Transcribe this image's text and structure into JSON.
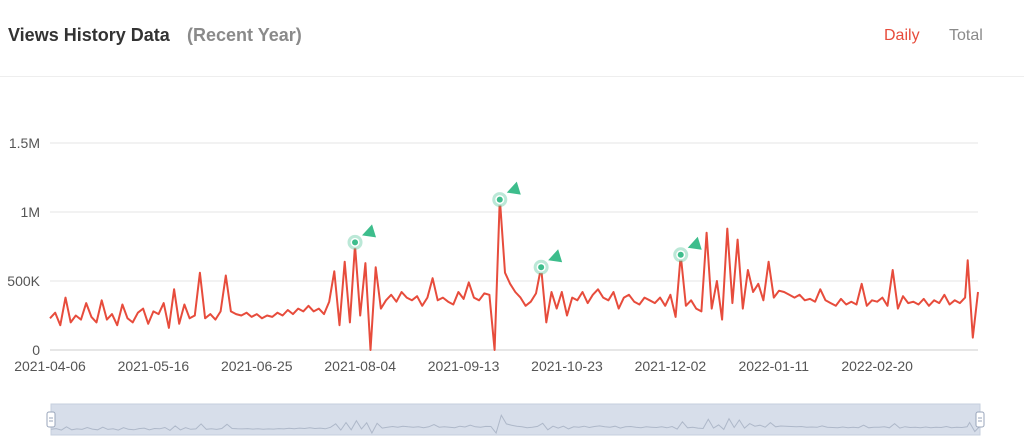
{
  "header": {
    "title": "Views History Data",
    "subtitle": "(Recent Year)",
    "tabs": [
      {
        "label": "Daily",
        "active": true
      },
      {
        "label": "Total",
        "active": false
      }
    ]
  },
  "colors": {
    "series": "#e74c3c",
    "marker": "#3dbd8c",
    "active_tab": "#e74c3c",
    "grid": "#e6e6e6",
    "zoom_fill": "#d7deea"
  },
  "chart_data": {
    "type": "line",
    "title": "",
    "xlabel": "",
    "ylabel": "",
    "ylim": [
      0,
      1500000
    ],
    "y_ticks": [
      {
        "value": 0,
        "label": "0"
      },
      {
        "value": 500000,
        "label": "500K"
      },
      {
        "value": 1000000,
        "label": "1M"
      },
      {
        "value": 1500000,
        "label": "1.5M"
      }
    ],
    "x_ticks": [
      "2021-04-06",
      "2021-05-16",
      "2021-06-25",
      "2021-08-04",
      "2021-09-13",
      "2021-10-23",
      "2021-12-02",
      "2022-01-11",
      "2022-02-20"
    ],
    "x_range": [
      "2021-04-06",
      "2022-03-31"
    ],
    "grid": true,
    "legend": "none",
    "series": [
      {
        "values": [
          [
            "2021-04-06",
            230000
          ],
          [
            "2021-04-08",
            270000
          ],
          [
            "2021-04-10",
            180000
          ],
          [
            "2021-04-12",
            380000
          ],
          [
            "2021-04-14",
            200000
          ],
          [
            "2021-04-16",
            250000
          ],
          [
            "2021-04-18",
            220000
          ],
          [
            "2021-04-20",
            340000
          ],
          [
            "2021-04-22",
            240000
          ],
          [
            "2021-04-24",
            200000
          ],
          [
            "2021-04-26",
            360000
          ],
          [
            "2021-04-28",
            220000
          ],
          [
            "2021-04-30",
            260000
          ],
          [
            "2021-05-02",
            180000
          ],
          [
            "2021-05-04",
            330000
          ],
          [
            "2021-05-06",
            230000
          ],
          [
            "2021-05-08",
            200000
          ],
          [
            "2021-05-10",
            270000
          ],
          [
            "2021-05-12",
            300000
          ],
          [
            "2021-05-14",
            190000
          ],
          [
            "2021-05-16",
            280000
          ],
          [
            "2021-05-18",
            260000
          ],
          [
            "2021-05-20",
            340000
          ],
          [
            "2021-05-22",
            160000
          ],
          [
            "2021-05-24",
            440000
          ],
          [
            "2021-05-26",
            190000
          ],
          [
            "2021-05-28",
            330000
          ],
          [
            "2021-05-30",
            230000
          ],
          [
            "2021-06-01",
            250000
          ],
          [
            "2021-06-03",
            560000
          ],
          [
            "2021-06-05",
            230000
          ],
          [
            "2021-06-07",
            260000
          ],
          [
            "2021-06-09",
            220000
          ],
          [
            "2021-06-11",
            280000
          ],
          [
            "2021-06-13",
            540000
          ],
          [
            "2021-06-15",
            280000
          ],
          [
            "2021-06-17",
            260000
          ],
          [
            "2021-06-19",
            250000
          ],
          [
            "2021-06-21",
            270000
          ],
          [
            "2021-06-23",
            240000
          ],
          [
            "2021-06-25",
            260000
          ],
          [
            "2021-06-27",
            230000
          ],
          [
            "2021-06-29",
            250000
          ],
          [
            "2021-07-01",
            240000
          ],
          [
            "2021-07-03",
            270000
          ],
          [
            "2021-07-05",
            250000
          ],
          [
            "2021-07-07",
            290000
          ],
          [
            "2021-07-09",
            260000
          ],
          [
            "2021-07-11",
            300000
          ],
          [
            "2021-07-13",
            280000
          ],
          [
            "2021-07-15",
            320000
          ],
          [
            "2021-07-17",
            280000
          ],
          [
            "2021-07-19",
            300000
          ],
          [
            "2021-07-21",
            260000
          ],
          [
            "2021-07-23",
            350000
          ],
          [
            "2021-07-25",
            570000
          ],
          [
            "2021-07-27",
            180000
          ],
          [
            "2021-07-29",
            640000
          ],
          [
            "2021-07-31",
            200000
          ],
          [
            "2021-08-02",
            760000
          ],
          [
            "2021-08-04",
            250000
          ],
          [
            "2021-08-06",
            630000
          ],
          [
            "2021-08-08",
            0
          ],
          [
            "2021-08-10",
            600000
          ],
          [
            "2021-08-12",
            300000
          ],
          [
            "2021-08-14",
            360000
          ],
          [
            "2021-08-16",
            400000
          ],
          [
            "2021-08-18",
            350000
          ],
          [
            "2021-08-20",
            420000
          ],
          [
            "2021-08-22",
            380000
          ],
          [
            "2021-08-24",
            360000
          ],
          [
            "2021-08-26",
            390000
          ],
          [
            "2021-08-28",
            320000
          ],
          [
            "2021-08-30",
            380000
          ],
          [
            "2021-09-01",
            520000
          ],
          [
            "2021-09-03",
            360000
          ],
          [
            "2021-09-05",
            380000
          ],
          [
            "2021-09-07",
            350000
          ],
          [
            "2021-09-09",
            330000
          ],
          [
            "2021-09-11",
            420000
          ],
          [
            "2021-09-13",
            370000
          ],
          [
            "2021-09-15",
            490000
          ],
          [
            "2021-09-17",
            380000
          ],
          [
            "2021-09-19",
            360000
          ],
          [
            "2021-09-21",
            410000
          ],
          [
            "2021-09-23",
            400000
          ],
          [
            "2021-09-25",
            0
          ],
          [
            "2021-09-27",
            1100000
          ],
          [
            "2021-09-29",
            560000
          ],
          [
            "2021-10-01",
            480000
          ],
          [
            "2021-10-03",
            420000
          ],
          [
            "2021-10-05",
            380000
          ],
          [
            "2021-10-07",
            320000
          ],
          [
            "2021-10-09",
            350000
          ],
          [
            "2021-10-11",
            410000
          ],
          [
            "2021-10-13",
            600000
          ],
          [
            "2021-10-15",
            200000
          ],
          [
            "2021-10-17",
            420000
          ],
          [
            "2021-10-19",
            300000
          ],
          [
            "2021-10-21",
            420000
          ],
          [
            "2021-10-23",
            250000
          ],
          [
            "2021-10-25",
            380000
          ],
          [
            "2021-10-27",
            360000
          ],
          [
            "2021-10-29",
            420000
          ],
          [
            "2021-10-31",
            340000
          ],
          [
            "2021-11-02",
            400000
          ],
          [
            "2021-11-04",
            440000
          ],
          [
            "2021-11-06",
            380000
          ],
          [
            "2021-11-08",
            360000
          ],
          [
            "2021-11-10",
            420000
          ],
          [
            "2021-11-12",
            300000
          ],
          [
            "2021-11-14",
            380000
          ],
          [
            "2021-11-16",
            400000
          ],
          [
            "2021-11-18",
            350000
          ],
          [
            "2021-11-20",
            330000
          ],
          [
            "2021-11-22",
            380000
          ],
          [
            "2021-11-24",
            360000
          ],
          [
            "2021-11-26",
            340000
          ],
          [
            "2021-11-28",
            380000
          ],
          [
            "2021-11-30",
            320000
          ],
          [
            "2021-12-02",
            400000
          ],
          [
            "2021-12-04",
            240000
          ],
          [
            "2021-12-06",
            690000
          ],
          [
            "2021-12-08",
            320000
          ],
          [
            "2021-12-10",
            360000
          ],
          [
            "2021-12-12",
            300000
          ],
          [
            "2021-12-14",
            280000
          ],
          [
            "2021-12-16",
            850000
          ],
          [
            "2021-12-18",
            300000
          ],
          [
            "2021-12-20",
            500000
          ],
          [
            "2021-12-22",
            220000
          ],
          [
            "2021-12-24",
            880000
          ],
          [
            "2021-12-26",
            340000
          ],
          [
            "2021-12-28",
            800000
          ],
          [
            "2021-12-30",
            300000
          ],
          [
            "2022-01-01",
            580000
          ],
          [
            "2022-01-03",
            420000
          ],
          [
            "2022-01-05",
            480000
          ],
          [
            "2022-01-07",
            360000
          ],
          [
            "2022-01-09",
            640000
          ],
          [
            "2022-01-11",
            380000
          ],
          [
            "2022-01-13",
            430000
          ],
          [
            "2022-01-15",
            420000
          ],
          [
            "2022-01-17",
            400000
          ],
          [
            "2022-01-19",
            380000
          ],
          [
            "2022-01-21",
            400000
          ],
          [
            "2022-01-23",
            360000
          ],
          [
            "2022-01-25",
            370000
          ],
          [
            "2022-01-27",
            350000
          ],
          [
            "2022-01-29",
            440000
          ],
          [
            "2022-01-31",
            360000
          ],
          [
            "2022-02-02",
            340000
          ],
          [
            "2022-02-04",
            320000
          ],
          [
            "2022-02-06",
            370000
          ],
          [
            "2022-02-08",
            330000
          ],
          [
            "2022-02-10",
            350000
          ],
          [
            "2022-02-12",
            330000
          ],
          [
            "2022-02-14",
            480000
          ],
          [
            "2022-02-16",
            320000
          ],
          [
            "2022-02-18",
            360000
          ],
          [
            "2022-02-20",
            350000
          ],
          [
            "2022-02-22",
            380000
          ],
          [
            "2022-02-24",
            320000
          ],
          [
            "2022-02-26",
            580000
          ],
          [
            "2022-02-28",
            300000
          ],
          [
            "2022-03-02",
            390000
          ],
          [
            "2022-03-04",
            340000
          ],
          [
            "2022-03-06",
            350000
          ],
          [
            "2022-03-08",
            330000
          ],
          [
            "2022-03-10",
            370000
          ],
          [
            "2022-03-12",
            320000
          ],
          [
            "2022-03-14",
            360000
          ],
          [
            "2022-03-16",
            340000
          ],
          [
            "2022-03-18",
            400000
          ],
          [
            "2022-03-20",
            330000
          ],
          [
            "2022-03-22",
            360000
          ],
          [
            "2022-03-24",
            340000
          ],
          [
            "2022-03-26",
            380000
          ],
          [
            "2022-03-27",
            650000
          ],
          [
            "2022-03-29",
            90000
          ],
          [
            "2022-03-31",
            420000
          ]
        ]
      }
    ],
    "markers": [
      {
        "x": "2021-08-02",
        "y": 780000
      },
      {
        "x": "2021-09-27",
        "y": 1090000
      },
      {
        "x": "2021-10-13",
        "y": 600000
      },
      {
        "x": "2021-12-06",
        "y": 690000
      }
    ]
  },
  "data_zoom": {
    "start": "2021-04-06",
    "end": "2022-03-31"
  }
}
